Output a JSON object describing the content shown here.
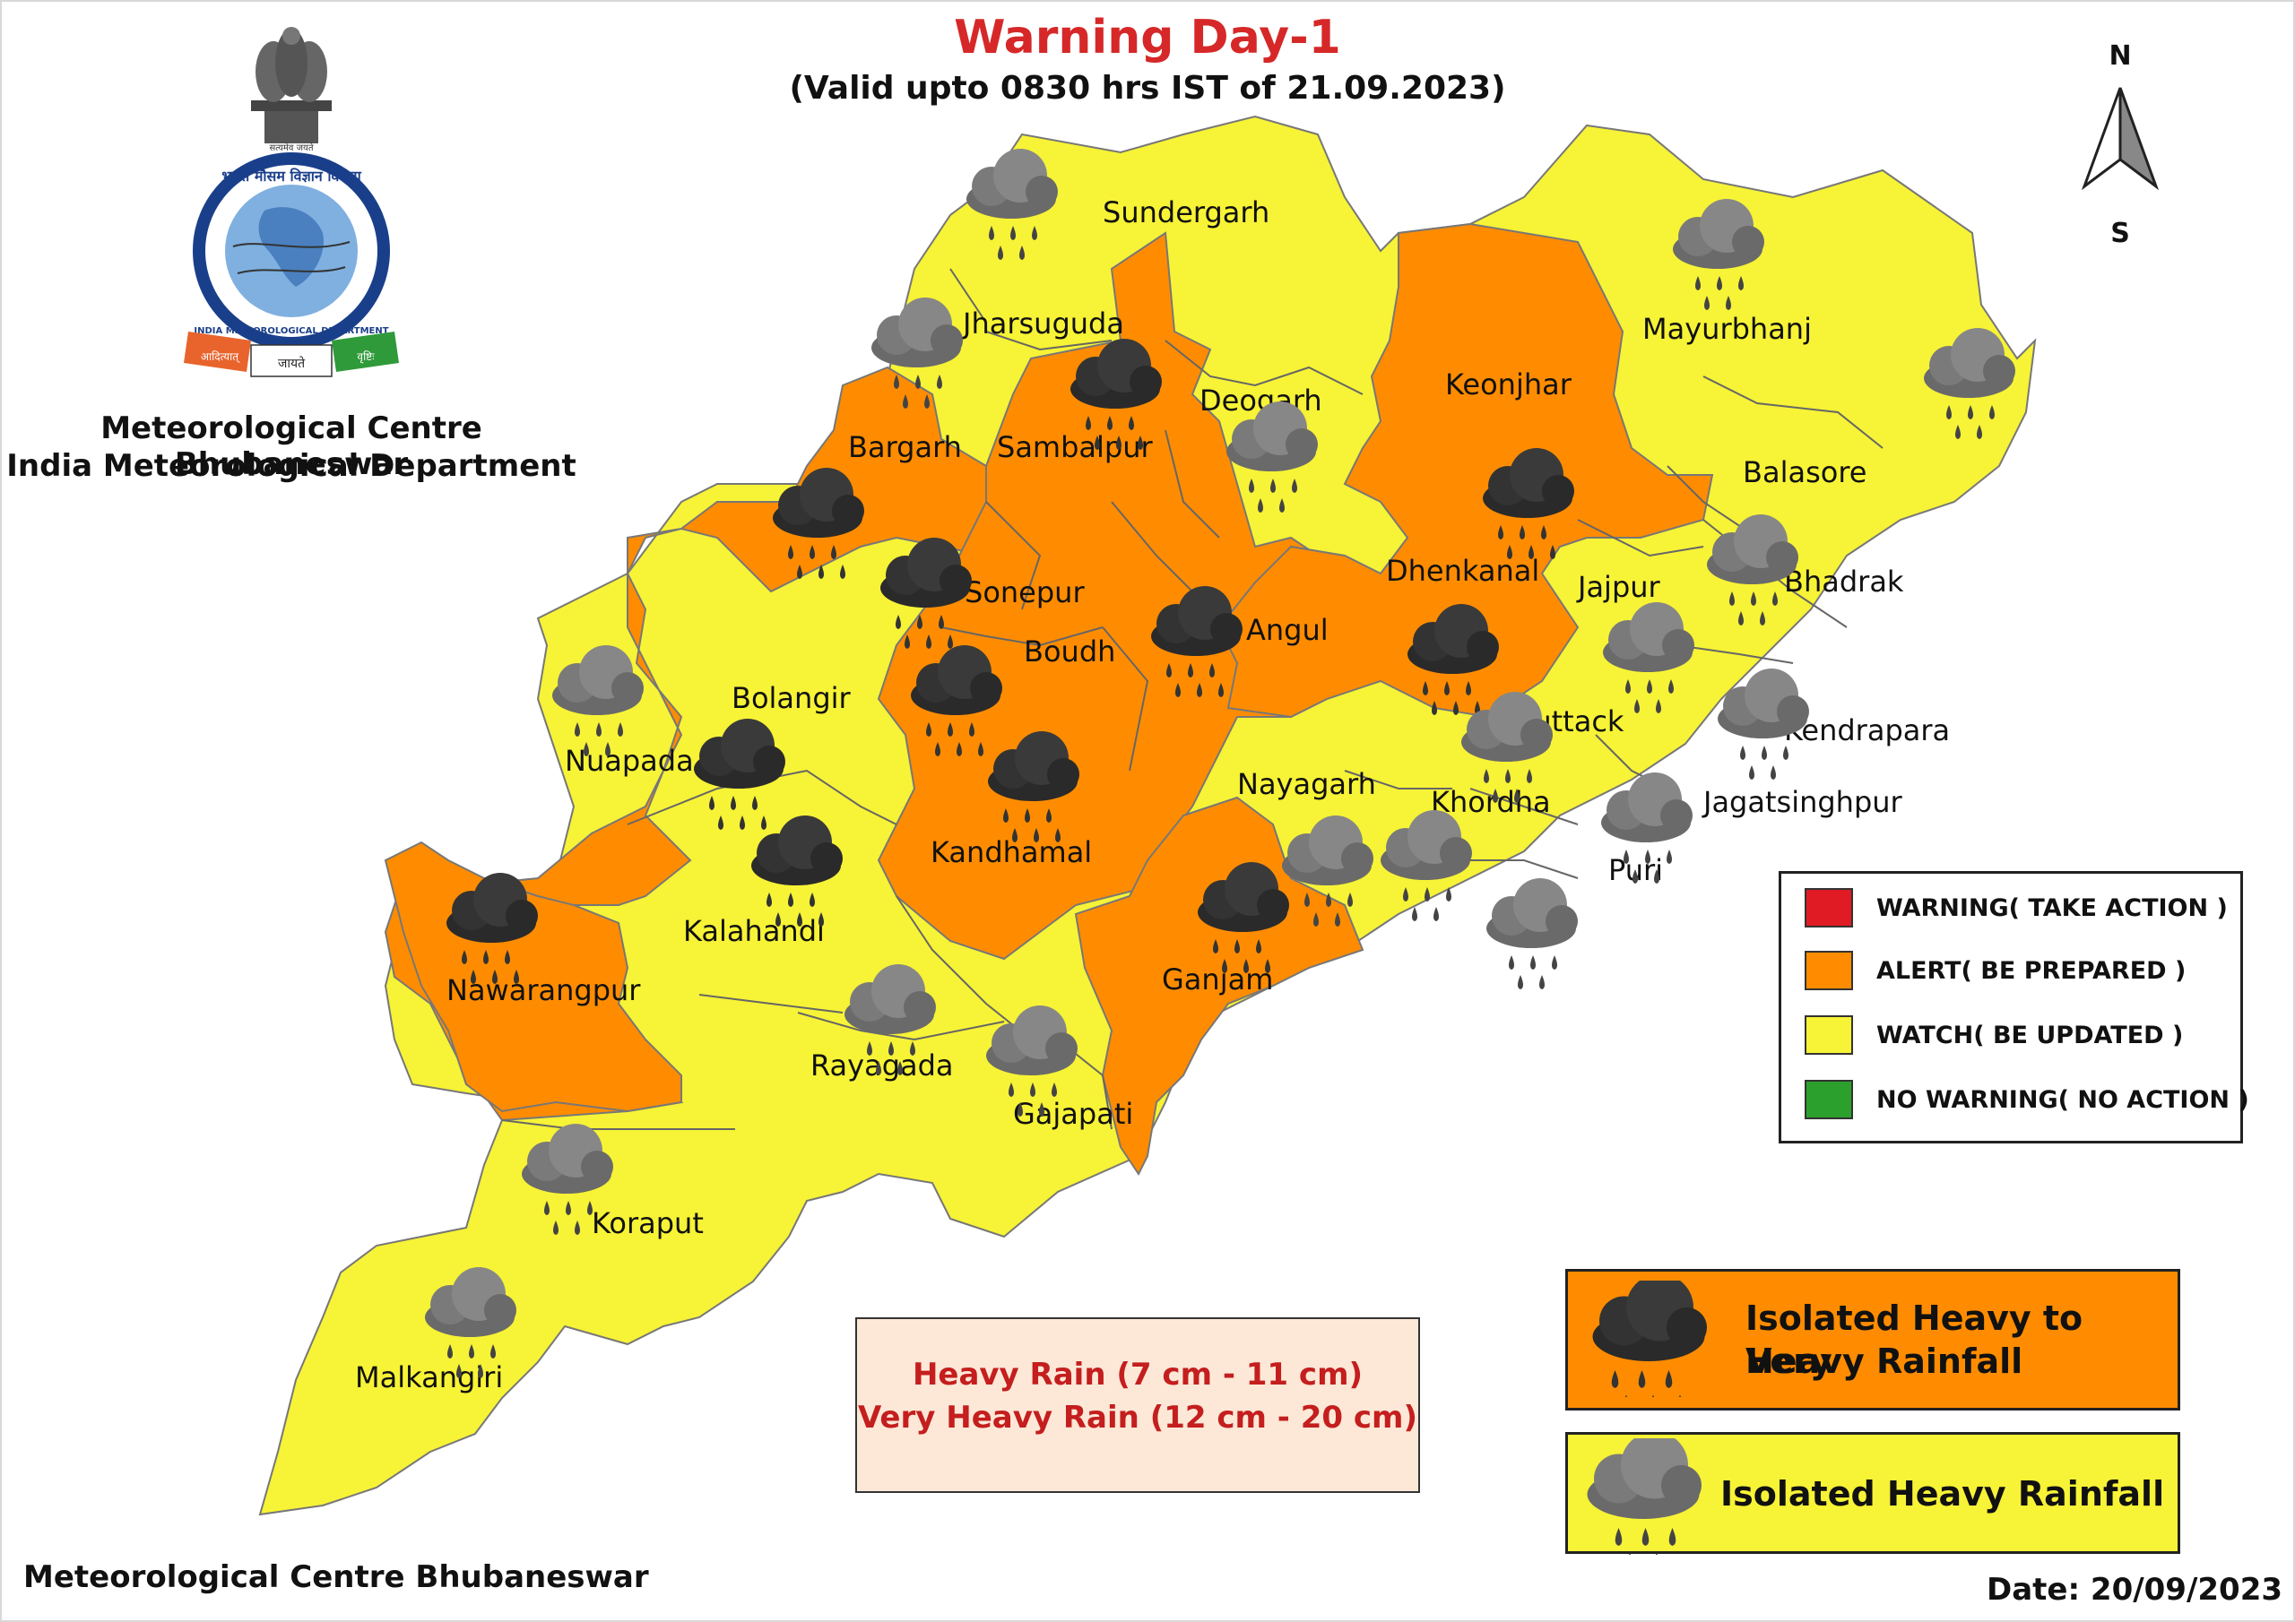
{
  "header": {
    "title": "Warning Day-1",
    "subtitle": "(Valid upto 0830 hrs IST of 21.09.2023)"
  },
  "organization": {
    "line1": "Meteorological Centre Bhubaneswar",
    "line2": "India Meteorological Department",
    "logo_text": [
      "भारत मौसम विज्ञान विभाग",
      "INDIA METEOROLOGICAL DEPARTMENT",
      "आदित्यात्",
      "जायते",
      "वृष्टिः",
      "सत्यमेव जयते"
    ]
  },
  "compass": {
    "north": "N",
    "south": "S"
  },
  "districts": [
    {
      "name": "Sundergarh",
      "level": "watch",
      "symbol": "heavy"
    },
    {
      "name": "Jharsuguda",
      "level": "watch",
      "symbol": "heavy"
    },
    {
      "name": "Deogarh",
      "level": "watch",
      "symbol": "heavy"
    },
    {
      "name": "Keonjhar",
      "level": "alert",
      "symbol": "very-heavy"
    },
    {
      "name": "Mayurbhanj",
      "level": "watch",
      "symbol": "heavy"
    },
    {
      "name": "Balasore",
      "level": "watch",
      "symbol": "heavy"
    },
    {
      "name": "Bargarh",
      "level": "alert",
      "symbol": "very-heavy"
    },
    {
      "name": "Sambalpur",
      "level": "alert",
      "symbol": "very-heavy"
    },
    {
      "name": "Sonepur",
      "level": "alert",
      "symbol": "very-heavy"
    },
    {
      "name": "Angul",
      "level": "alert",
      "symbol": "very-heavy"
    },
    {
      "name": "Dhenkanal",
      "level": "alert",
      "symbol": "very-heavy"
    },
    {
      "name": "Jajpur",
      "level": "watch",
      "symbol": "heavy"
    },
    {
      "name": "Bhadrak",
      "level": "watch",
      "symbol": "heavy"
    },
    {
      "name": "Boudh",
      "level": "alert",
      "symbol": "very-heavy"
    },
    {
      "name": "Bolangir",
      "level": "alert",
      "symbol": "very-heavy"
    },
    {
      "name": "Nuapada",
      "level": "watch",
      "symbol": "heavy"
    },
    {
      "name": "Cuttack",
      "level": "watch",
      "symbol": "heavy"
    },
    {
      "name": "Kendrapara",
      "level": "watch",
      "symbol": "heavy"
    },
    {
      "name": "Nayagarh",
      "level": "watch",
      "symbol": "heavy"
    },
    {
      "name": "Khordha",
      "level": "watch",
      "symbol": "heavy"
    },
    {
      "name": "Jagatsinghpur",
      "level": "watch",
      "symbol": "heavy"
    },
    {
      "name": "Puri",
      "level": "watch",
      "symbol": "heavy"
    },
    {
      "name": "Kandhamal",
      "level": "alert",
      "symbol": "very-heavy"
    },
    {
      "name": "Kalahandi",
      "level": "alert",
      "symbol": "very-heavy"
    },
    {
      "name": "Nawarangpur",
      "level": "alert",
      "symbol": "very-heavy"
    },
    {
      "name": "Ganjam",
      "level": "alert",
      "symbol": "very-heavy"
    },
    {
      "name": "Rayagada",
      "level": "watch",
      "symbol": "heavy"
    },
    {
      "name": "Gajapati",
      "level": "watch",
      "symbol": "heavy"
    },
    {
      "name": "Koraput",
      "level": "watch",
      "symbol": "heavy"
    },
    {
      "name": "Malkangiri",
      "level": "watch",
      "symbol": "heavy"
    }
  ],
  "legend": {
    "items": [
      {
        "label": "WARNING( TAKE ACTION )",
        "color": "#e01b24"
      },
      {
        "label": "ALERT( BE PREPARED )",
        "color": "#ff8c00"
      },
      {
        "label": "WATCH( BE UPDATED )",
        "color": "#f7f336"
      },
      {
        "label": "NO WARNING( NO ACTION )",
        "color": "#2ca02c"
      }
    ]
  },
  "rain_scale": {
    "line1": "Heavy Rain (7 cm - 11 cm)",
    "line2": "Very Heavy Rain (12 cm - 20 cm)"
  },
  "symbols": {
    "very_heavy": {
      "line1": "Isolated Heavy to Very",
      "line2": "Heavy Rainfall",
      "color": "#ff8c00"
    },
    "heavy": {
      "line1": "Isolated Heavy Rainfall",
      "color": "#f7f336"
    }
  },
  "footer": {
    "left": "Meteorological Centre Bhubaneswar",
    "date": "Date: 20/09/2023"
  },
  "colors": {
    "alert": "#ff8c00",
    "watch": "#f7f336",
    "warning": "#e01b24",
    "no_warning": "#2ca02c",
    "title": "#d62828",
    "rain_text": "#c41e1e"
  }
}
